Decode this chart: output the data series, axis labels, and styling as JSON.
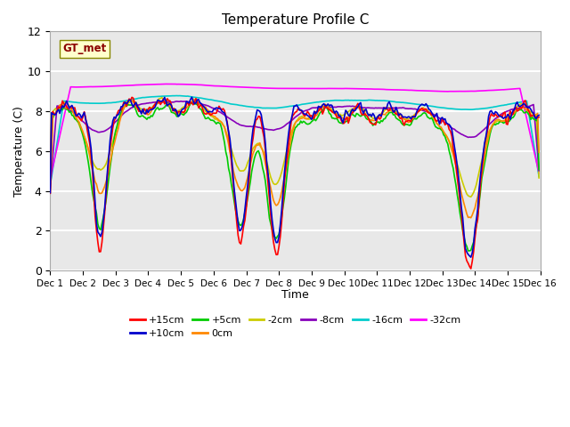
{
  "title": "Temperature Profile C",
  "xlabel": "Time",
  "ylabel": "Temperature (C)",
  "ylim": [
    0,
    12
  ],
  "xlim": [
    0,
    360
  ],
  "x_ticks": [
    0,
    24,
    48,
    72,
    96,
    120,
    144,
    168,
    192,
    216,
    240,
    264,
    288,
    312,
    336,
    360
  ],
  "x_tick_labels": [
    "Dec 1",
    "Dec 2",
    "Dec 3",
    "Dec 4",
    "Dec 5",
    "Dec 6",
    "Dec 7",
    "Dec 8",
    "Dec 9",
    "Dec 10",
    "Dec 11",
    "Dec 12",
    "Dec 13",
    "Dec 14",
    "Dec 15",
    "Dec 16"
  ],
  "yticks": [
    0,
    2,
    4,
    6,
    8,
    10,
    12
  ],
  "series_colors": {
    "+15cm": "#ff0000",
    "+10cm": "#0000cc",
    "+5cm": "#00cc00",
    "0cm": "#ff8800",
    "-2cm": "#cccc00",
    "-8cm": "#8800bb",
    "-16cm": "#00cccc",
    "-32cm": "#ff00ff"
  },
  "series_lw": 1.2,
  "annotation_text": "GT_met",
  "axes_bg": "#e8e8e8",
  "plot_bg": "#e0e0e0",
  "grid_color": "#ffffff",
  "fig_bg": "#ffffff",
  "figsize": [
    6.4,
    4.8
  ],
  "dpi": 100
}
